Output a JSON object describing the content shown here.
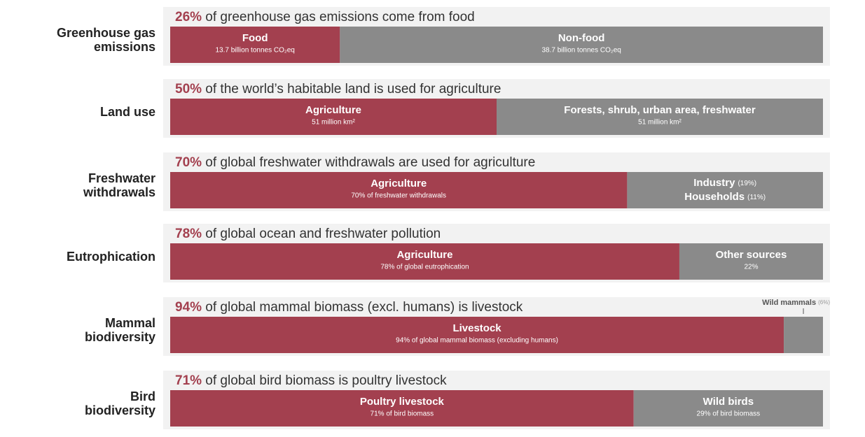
{
  "chart_data": [
    {
      "type": "stacked_bar",
      "label": [
        "Greenhouse gas",
        "emissions"
      ],
      "title_highlight": "26%",
      "title": " of greenhouse gas emissions come from food",
      "xlim": [
        0,
        100
      ],
      "series": [
        {
          "name": "Food",
          "note": "13.7 billion tonnes CO₂eq",
          "color": "#a3404f",
          "values": [
            26
          ]
        },
        {
          "name": "Non-food",
          "note": "38.7 billion tonnes CO₂eq",
          "color": "#8a8a8a",
          "values": [
            74
          ]
        }
      ]
    },
    {
      "type": "stacked_bar",
      "label": [
        "Land use"
      ],
      "title_highlight": "50%",
      "title": " of the world’s habitable land is used for agriculture",
      "xlim": [
        0,
        100
      ],
      "series": [
        {
          "name": "Agriculture",
          "note": "51 million km²",
          "color": "#a3404f",
          "values": [
            50
          ]
        },
        {
          "name": "Forests, shrub, urban area, freshwater",
          "note": "51 million km²",
          "color": "#8a8a8a",
          "values": [
            50
          ]
        }
      ]
    },
    {
      "type": "stacked_bar",
      "label": [
        "Freshwater",
        "withdrawals"
      ],
      "title_highlight": "70%",
      "title": " of global freshwater withdrawals are used for agriculture",
      "xlim": [
        0,
        100
      ],
      "series": [
        {
          "name": "Agriculture",
          "note": "70% of freshwater withdrawals",
          "color": "#a3404f",
          "values": [
            70
          ]
        },
        {
          "lines": [
            {
              "name": "Industry",
              "note": "(19%)"
            },
            {
              "name": "Households",
              "note": "(11%)"
            }
          ],
          "color": "#8a8a8a",
          "values": [
            30
          ]
        }
      ]
    },
    {
      "type": "stacked_bar",
      "label": [
        "Eutrophication"
      ],
      "title_highlight": "78%",
      "title": " of global ocean and freshwater pollution",
      "xlim": [
        0,
        100
      ],
      "series": [
        {
          "name": "Agriculture",
          "note": "78% of global eutrophication",
          "color": "#a3404f",
          "values": [
            78
          ]
        },
        {
          "name": "Other sources",
          "note": "22%",
          "color": "#8a8a8a",
          "values": [
            22
          ]
        }
      ]
    },
    {
      "type": "stacked_bar",
      "label": [
        "Mammal",
        "biodiversity"
      ],
      "title_highlight": "94%",
      "title": " of global mammal biomass (excl. humans) is livestock",
      "xlim": [
        0,
        100
      ],
      "series": [
        {
          "name": "Livestock",
          "note": "94% of global mammal biomass (excluding humans)",
          "color": "#a3404f",
          "values": [
            94
          ]
        },
        {
          "name": "Wild mammals",
          "note": "(6%)",
          "label_position": "above",
          "color": "#8a8a8a",
          "values": [
            6
          ]
        }
      ]
    },
    {
      "type": "stacked_bar",
      "label": [
        "Bird",
        "biodiversity"
      ],
      "title_highlight": "71%",
      "title": " of global bird biomass is poultry livestock",
      "xlim": [
        0,
        100
      ],
      "series": [
        {
          "name": "Poultry livestock",
          "note": "71% of bird biomass",
          "color": "#a3404f",
          "values": [
            71
          ]
        },
        {
          "name": "Wild birds",
          "note": "29% of bird biomass",
          "color": "#8a8a8a",
          "values": [
            29
          ]
        }
      ]
    }
  ]
}
